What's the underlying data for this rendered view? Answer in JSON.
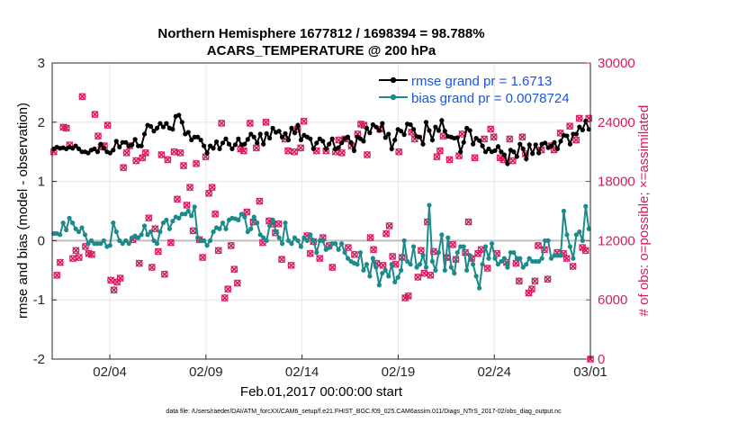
{
  "chart_data": {
    "type": "line",
    "title": "Northern Hemisphere 1677812 / 1698394 = 98.788%",
    "subtitle": "ACARS_TEMPERATURE @ 200 hPa",
    "xlabel": "Feb.01,2017 00:00:00 start",
    "ylabel_left": "rmse and bias (model - observation)",
    "ylabel_right": "# of obs: o=possible; ×=assimilated",
    "footnote": "data file: /Users/raeder/DAI/ATM_forcXX/CAM6_setup/f.e21.FHIST_BGC.f09_025.CAM6assim.011/Diags_NTrS_2017-02/obs_diag_output.nc",
    "xlim": [
      1,
      29
    ],
    "x_ticks": [
      4,
      9,
      14,
      19,
      24,
      29
    ],
    "x_tick_labels": [
      "02/04",
      "02/09",
      "02/14",
      "02/19",
      "02/24",
      "03/01"
    ],
    "ylim_left": [
      -2,
      3
    ],
    "y_ticks_left": [
      "-2",
      "-1",
      "0",
      "1",
      "2",
      "3"
    ],
    "ylim_right": [
      0,
      30000
    ],
    "y_ticks_right": [
      "0",
      "6000",
      "12000",
      "18000",
      "24000",
      "30000"
    ],
    "legend": [
      {
        "label": "rmse grand pr = 1.6713",
        "color": "#000000"
      },
      {
        "label": "bias grand pr = 0.0078724",
        "color": "#1a8a8a"
      }
    ],
    "series": [
      {
        "name": "rmse",
        "color": "#000000",
        "axis": "left",
        "values": [
          1.55,
          1.58,
          1.56,
          1.57,
          1.55,
          1.58,
          1.56,
          1.6,
          1.55,
          1.5,
          1.5,
          1.48,
          1.53,
          1.55,
          1.5,
          1.63,
          1.56,
          1.5,
          1.48,
          1.53,
          1.68,
          1.58,
          1.66,
          1.66,
          1.6,
          1.62,
          1.71,
          1.6,
          1.6,
          1.8,
          1.95,
          1.93,
          1.85,
          1.9,
          1.98,
          1.92,
          1.98,
          1.9,
          1.88,
          2.1,
          2.12,
          2.0,
          1.8,
          1.83,
          1.7,
          1.75,
          1.75,
          1.7,
          1.6,
          1.48,
          1.6,
          1.56,
          1.67,
          1.55,
          1.65,
          1.72,
          1.63,
          1.55,
          1.62,
          1.72,
          1.62,
          1.63,
          1.71,
          1.8,
          1.75,
          1.65,
          1.8,
          1.63,
          1.81,
          1.73,
          1.9,
          1.83,
          1.85,
          1.75,
          1.81,
          1.7,
          1.9,
          1.82,
          1.95,
          1.7,
          1.78,
          1.75,
          1.72,
          1.55,
          1.65,
          1.72,
          1.68,
          1.55,
          1.63,
          1.72,
          1.55,
          1.57,
          1.65,
          1.72,
          1.75,
          1.66,
          1.52,
          1.75,
          1.72,
          1.68,
          1.9,
          1.82,
          1.96,
          1.92,
          1.86,
          1.98,
          1.74,
          1.8,
          1.55,
          1.7,
          1.88,
          1.85,
          1.79,
          1.97,
          1.96,
          1.88,
          1.76,
          1.75,
          1.63,
          2.0,
          1.86,
          1.7,
          1.92,
          1.86,
          2.03,
          1.85,
          1.76,
          1.75,
          1.73,
          1.74,
          1.5,
          1.66,
          1.9,
          1.86,
          1.63,
          1.73,
          1.69,
          1.6,
          1.5,
          1.55,
          1.5,
          1.52,
          1.59,
          1.5,
          1.45,
          1.3,
          1.53,
          1.5,
          1.42,
          1.63,
          1.55,
          1.38,
          1.62,
          1.47,
          1.62,
          1.48,
          1.63,
          1.65,
          1.57,
          1.6,
          1.66,
          1.55,
          1.68,
          1.78,
          1.77,
          1.63,
          1.8,
          1.8,
          1.92,
          1.87,
          2.02,
          1.88
        ]
      },
      {
        "name": "bias",
        "color": "#1a8a8a",
        "axis": "left",
        "values": [
          0.12,
          0.12,
          0.1,
          0.3,
          0.18,
          0.38,
          0.3,
          0.2,
          0.15,
          0.22,
          0.1,
          -0.05,
          0.0,
          -0.05,
          -0.05,
          -0.05,
          0.0,
          -0.1,
          -0.08,
          0.3,
          0.15,
          0.0,
          -0.05,
          0.0,
          -0.05,
          0.05,
          0.08,
          0.05,
          0.1,
          0.25,
          0.1,
          0.15,
          0.0,
          -0.05,
          0.15,
          0.3,
          0.35,
          0.2,
          0.33,
          0.4,
          0.38,
          0.45,
          0.45,
          0.5,
          0.42,
          0.57,
          0.05,
          0.0,
          0.0,
          -0.08,
          0.0,
          0.15,
          0.22,
          0.2,
          0.3,
          0.2,
          0.35,
          0.38,
          0.37,
          0.35,
          0.45,
          0.4,
          0.15,
          0.2,
          0.4,
          0.3,
          0.1,
          0.05,
          0.0,
          0.25,
          0.35,
          0.15,
          0.05,
          -0.05,
          0.3,
          0.0,
          -0.05,
          0.05,
          0.0,
          -0.1,
          0.05,
          0.0,
          0.1,
          0.0,
          -0.2,
          0.0,
          0.0,
          -0.15,
          -0.12,
          -0.05,
          -0.05,
          -0.15,
          -0.05,
          -0.2,
          -0.3,
          -0.35,
          -0.38,
          -0.4,
          -0.2,
          -0.5,
          -0.4,
          -0.6,
          -0.3,
          -0.45,
          -0.75,
          -0.55,
          -0.5,
          -0.6,
          -0.4,
          -0.7,
          -0.62,
          -0.5,
          0.0,
          -0.35,
          -0.4,
          -0.1,
          -0.45,
          -0.4,
          -0.25,
          -0.45,
          0.6,
          -0.35,
          -0.5,
          -0.2,
          0.1,
          -0.5,
          0.05,
          -0.45,
          -0.55,
          -0.2,
          -0.1,
          -0.1,
          -0.5,
          -0.25,
          -0.4,
          -0.6,
          -0.8,
          -0.4,
          -0.1,
          -0.3,
          -0.05,
          -0.3,
          -0.4,
          -0.35,
          -0.3,
          -0.45,
          -0.2,
          -0.2,
          -0.3,
          -0.3,
          -0.45,
          -0.4,
          -0.3,
          -0.35,
          -0.35,
          -0.35,
          -0.3,
          0.0,
          0.0,
          -0.3,
          -0.25,
          -0.25,
          -0.25,
          0.5,
          0.1,
          -0.1,
          -0.3,
          0.1,
          0.15,
          0.0,
          0.58,
          0.2
        ]
      },
      {
        "name": "obs possible",
        "color": "#d81b60",
        "axis": "right",
        "values": [
          21000,
          8500,
          9800,
          23500,
          23400,
          21700,
          10200,
          11000,
          10300,
          26600,
          11400,
          10700,
          10600,
          24800,
          22600,
          21500,
          21600,
          23700,
          8000,
          7000,
          7800,
          8200,
          19400,
          20900,
          21600,
          12100,
          20100,
          9700,
          20400,
          20900,
          14300,
          9300,
          13200,
          10900,
          20700,
          8600,
          20200,
          11800,
          21000,
          16200,
          20900,
          19600,
          15600,
          17400,
          13000,
          19800,
          12100,
          10300,
          20500,
          16800,
          17400,
          14700,
          11000,
          23900,
          6200,
          7100,
          11500,
          9100,
          7700,
          21300,
          21100,
          14900,
          23900,
          13900,
          21400,
          16000,
          11800,
          24000,
          14000,
          13700,
          12800,
          13700,
          10100,
          22300,
          21100,
          9500,
          21000,
          23300,
          21400,
          24100,
          12500,
          10700,
          11900,
          21100,
          10200,
          12300,
          21100,
          11500,
          9300,
          21000,
          22200,
          20900,
          22300,
          11300,
          21600,
          10600,
          22800,
          23800,
          23700,
          20700,
          12300,
          11100,
          9700,
          23300,
          9500,
          12700,
          13500,
          10400,
          9600,
          21000,
          10300,
          6200,
          6400,
          23000,
          22300,
          8300,
          11000,
          8700,
          13900,
          8500,
          10900,
          20500,
          21100,
          22600,
          10300,
          20200,
          11600,
          10100,
          20600,
          22800,
          10800,
          13900,
          10200,
          20400,
          10700,
          11100,
          22300,
          9200,
          23300,
          22500,
          10700,
          20400,
          20200,
          9800,
          22300,
          20100,
          9700,
          7900,
          22500,
          20800,
          6700,
          7100,
          7900,
          11500,
          21200,
          11100,
          8100,
          21600,
          21200,
          10800,
          22900,
          10700,
          10200,
          23600,
          9400,
          22200,
          24400,
          11300,
          11000,
          24400
        ]
      },
      {
        "name": "obs assimilated",
        "color": "#d81b60",
        "axis": "right",
        "values": [
          21000,
          8500,
          9800,
          23500,
          23400,
          21700,
          10200,
          11000,
          10300,
          26600,
          11400,
          10700,
          10600,
          24800,
          22600,
          21500,
          21600,
          23700,
          8000,
          7000,
          7800,
          8200,
          19400,
          20900,
          21600,
          12100,
          20100,
          9700,
          20400,
          20900,
          14300,
          9300,
          13200,
          10900,
          20700,
          8600,
          20200,
          11800,
          21000,
          16200,
          20900,
          19600,
          15600,
          17400,
          13000,
          19800,
          12100,
          10300,
          20500,
          16800,
          17400,
          14700,
          11000,
          23900,
          6200,
          7100,
          11500,
          9100,
          7700,
          21300,
          21100,
          14900,
          23900,
          13900,
          21400,
          16000,
          11800,
          24000,
          14000,
          13700,
          12800,
          13700,
          10100,
          22300,
          21100,
          9500,
          21000,
          23300,
          21400,
          24100,
          12500,
          10700,
          11900,
          21100,
          10200,
          12300,
          21100,
          11500,
          9300,
          21000,
          22200,
          20900,
          22300,
          11300,
          21600,
          10600,
          22800,
          23800,
          23700,
          20700,
          12300,
          11100,
          9700,
          23300,
          9500,
          12700,
          13500,
          10400,
          9600,
          21000,
          10300,
          6200,
          6400,
          23000,
          22300,
          8300,
          11000,
          8700,
          13900,
          8500,
          10900,
          20500,
          21100,
          22600,
          10300,
          20200,
          11600,
          10100,
          20600,
          22800,
          10800,
          13900,
          10200,
          20400,
          10700,
          11100,
          22300,
          9200,
          23300,
          22500,
          10700,
          20400,
          20200,
          9800,
          22300,
          20100,
          9700,
          7900,
          22500,
          20800,
          6700,
          7100,
          7900,
          11500,
          21200,
          11100,
          8100,
          21600,
          21200,
          10800,
          22900,
          10700,
          10200,
          23600,
          9400,
          22200,
          24400,
          11300,
          11000,
          24400
        ]
      }
    ]
  }
}
